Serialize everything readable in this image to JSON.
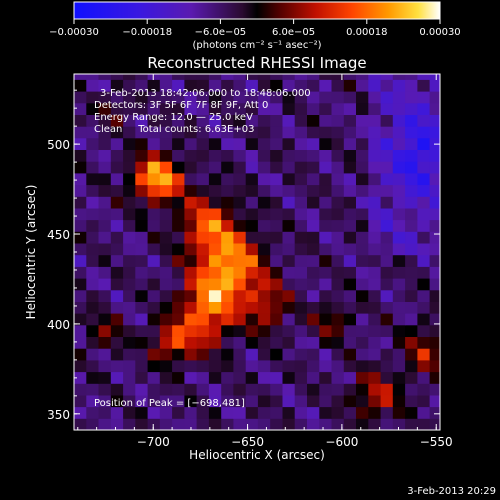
{
  "chart_data": {
    "type": "heatmap",
    "title": "Reconstructed RHESSI Image",
    "xlabel": "Heliocentric X (arcsec)",
    "ylabel": "Heliocentric Y (arcsec)",
    "xlim": [
      -742,
      -548
    ],
    "ylim": [
      341,
      539
    ],
    "x_ticks": [
      -700,
      -650,
      -600,
      -550
    ],
    "y_ticks": [
      350,
      400,
      450,
      500
    ],
    "x_tick_labels": [
      "−700",
      "−650",
      "−600",
      "−550"
    ],
    "y_tick_labels": [
      "350",
      "400",
      "450",
      "500"
    ],
    "colorbar": {
      "range": [
        -0.0003,
        0.0003
      ],
      "tick_values": [
        -0.0003,
        -0.00018,
        -6e-05,
        6e-05,
        0.00018,
        0.0003
      ],
      "tick_labels": [
        "−0.00030",
        "−0.00018",
        "−6.0e−05",
        "6.0e−05",
        "0.00018",
        "0.00030"
      ],
      "units_label": "(photons cm⁻² s⁻¹ asec⁻²)"
    },
    "annotations": {
      "time_range": "3-Feb-2013 18:42:06.000 to 18:48:06.000",
      "detectors": "Detectors: 3F 5F 6F 7F 8F 9F, Att 0",
      "energy_range": "Energy Range: 12.0 — 25.0 keV",
      "method_and_counts": "Clean     Total counts: 6.63E+03",
      "peak": "Position of Peak = [−698,481]"
    },
    "peak_position": [
      -698,
      481
    ],
    "sources": [
      {
        "x": -698,
        "y": 481,
        "sx": 9,
        "sy": 9,
        "amp": 0.0003
      },
      {
        "x": -672,
        "y": 455,
        "sx": 10,
        "sy": 12,
        "amp": 0.0002
      },
      {
        "x": -658,
        "y": 432,
        "sx": 11,
        "sy": 14,
        "amp": 0.00026
      },
      {
        "x": -672,
        "y": 408,
        "sx": 10,
        "sy": 14,
        "amp": 0.00024
      },
      {
        "x": -690,
        "y": 390,
        "sx": 8,
        "sy": 8,
        "amp": 0.00018
      },
      {
        "x": -640,
        "y": 410,
        "sx": 8,
        "sy": 10,
        "amp": 0.00015
      },
      {
        "x": -582,
        "y": 360,
        "sx": 9,
        "sy": 9,
        "amp": 0.00015
      },
      {
        "x": -556,
        "y": 385,
        "sx": 8,
        "sy": 10,
        "amp": 0.00013
      },
      {
        "x": -605,
        "y": 402,
        "sx": 7,
        "sy": 7,
        "amp": 0.00011
      },
      {
        "x": -726,
        "y": 395,
        "sx": 7,
        "sy": 7,
        "amp": 0.0001
      },
      {
        "x": -720,
        "y": 520,
        "sx": 6,
        "sy": 6,
        "amp": 8e-05
      },
      {
        "x": -560,
        "y": 495,
        "sx": 9,
        "sy": 16,
        "amp": -0.00012
      }
    ]
  },
  "footer": {
    "timestamp": "3-Feb-2013 20:29"
  }
}
